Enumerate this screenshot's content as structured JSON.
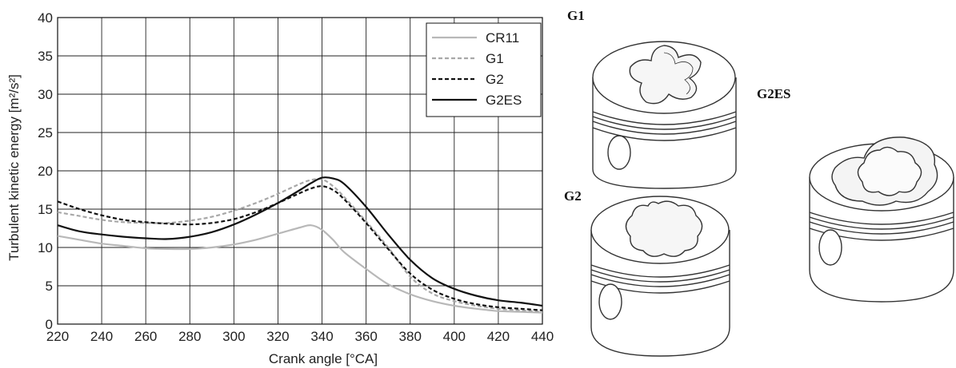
{
  "chart_data": {
    "type": "line",
    "title": "",
    "xlabel": "Crank angle [°CA]",
    "ylabel": "Turbulent kinetic energy [m²/s²]",
    "xlim": [
      220,
      440
    ],
    "ylim": [
      0,
      40
    ],
    "xticks": [
      "220",
      "240",
      "260",
      "280",
      "300",
      "320",
      "340",
      "360",
      "380",
      "400",
      "420",
      "440"
    ],
    "yticks": [
      "0",
      "5",
      "10",
      "15",
      "20",
      "25",
      "30",
      "35",
      "40"
    ],
    "grid": true,
    "legend_position": "top-right",
    "series": [
      {
        "name": "CR11",
        "color": "#b8b8b8",
        "dash": "solid",
        "x": [
          220,
          230,
          240,
          250,
          260,
          270,
          280,
          290,
          300,
          310,
          320,
          330,
          335,
          340,
          345,
          350,
          360,
          370,
          380,
          390,
          400,
          410,
          420,
          430,
          440
        ],
        "y": [
          11.5,
          11.0,
          10.5,
          10.2,
          9.9,
          9.8,
          9.8,
          10.0,
          10.4,
          11.0,
          11.8,
          12.6,
          12.9,
          12.3,
          11.0,
          9.4,
          7.2,
          5.2,
          3.9,
          3.0,
          2.4,
          2.0,
          1.7,
          1.6,
          1.5
        ]
      },
      {
        "name": "G1",
        "color": "#a8a8a8",
        "dash": "dashed",
        "x": [
          220,
          230,
          240,
          250,
          260,
          270,
          280,
          290,
          300,
          310,
          320,
          330,
          335,
          340,
          345,
          350,
          360,
          370,
          380,
          390,
          400,
          410,
          420,
          430,
          440
        ],
        "y": [
          14.6,
          14.1,
          13.6,
          13.3,
          13.2,
          13.2,
          13.5,
          14.0,
          14.8,
          15.8,
          17.0,
          18.3,
          18.8,
          18.9,
          18.0,
          16.6,
          13.4,
          10.0,
          6.2,
          4.0,
          3.0,
          2.4,
          2.0,
          1.8,
          1.6
        ]
      },
      {
        "name": "G2",
        "color": "#111111",
        "dash": "dashed",
        "x": [
          220,
          230,
          240,
          250,
          260,
          270,
          280,
          290,
          300,
          310,
          320,
          330,
          335,
          340,
          345,
          350,
          360,
          370,
          380,
          390,
          400,
          410,
          420,
          430,
          440
        ],
        "y": [
          16.0,
          15.0,
          14.2,
          13.6,
          13.3,
          13.1,
          13.0,
          13.2,
          13.7,
          14.6,
          15.8,
          17.1,
          17.7,
          18.0,
          17.5,
          16.3,
          13.2,
          9.8,
          6.6,
          4.5,
          3.3,
          2.6,
          2.2,
          2.0,
          1.8
        ]
      },
      {
        "name": "G2ES",
        "color": "#111111",
        "dash": "solid",
        "x": [
          220,
          230,
          240,
          250,
          260,
          270,
          280,
          290,
          300,
          310,
          320,
          330,
          335,
          340,
          345,
          350,
          360,
          370,
          380,
          390,
          400,
          410,
          420,
          430,
          440
        ],
        "y": [
          12.9,
          12.1,
          11.7,
          11.4,
          11.2,
          11.1,
          11.4,
          12.0,
          13.0,
          14.3,
          15.8,
          17.5,
          18.4,
          19.1,
          19.0,
          18.3,
          15.3,
          11.7,
          8.4,
          6.0,
          4.6,
          3.7,
          3.1,
          2.8,
          2.4
        ]
      }
    ]
  },
  "pistons": [
    {
      "label": "G1"
    },
    {
      "label": "G2"
    },
    {
      "label": "G2ES"
    }
  ]
}
